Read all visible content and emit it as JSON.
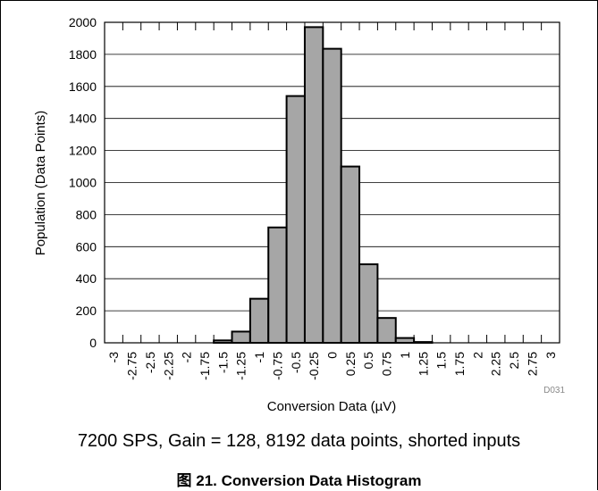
{
  "chart_data": {
    "type": "bar",
    "xlabel": "Conversion Data (µV)",
    "ylabel": "Population (Data Points)",
    "ylim": [
      0,
      2000
    ],
    "yticks": [
      "0",
      "200",
      "400",
      "600",
      "800",
      "1000",
      "1200",
      "1400",
      "1600",
      "1800",
      "2000"
    ],
    "categories": [
      "-3",
      "-2.75",
      "-2.5",
      "-2.25",
      "-2",
      "-1.75",
      "-1.5",
      "-1.25",
      "-1",
      "-0.75",
      "-0.5",
      "-0.25",
      "0",
      "0.25",
      "0.5",
      "0.75",
      "1",
      "1.25",
      "1.5",
      "1.75",
      "2",
      "2.25",
      "2.5",
      "2.75",
      "3"
    ],
    "values": [
      0,
      0,
      0,
      0,
      0,
      0,
      15,
      70,
      275,
      720,
      1540,
      1970,
      1835,
      1100,
      490,
      155,
      30,
      5,
      0,
      0,
      0,
      0,
      0,
      0,
      0
    ],
    "grid": true,
    "bar_color": "#a6a6a6",
    "watermark": "D031"
  },
  "subcaption": "7200 SPS, Gain = 128, 8192 data points, shorted inputs",
  "figure_caption": "图 21. Conversion Data Histogram"
}
